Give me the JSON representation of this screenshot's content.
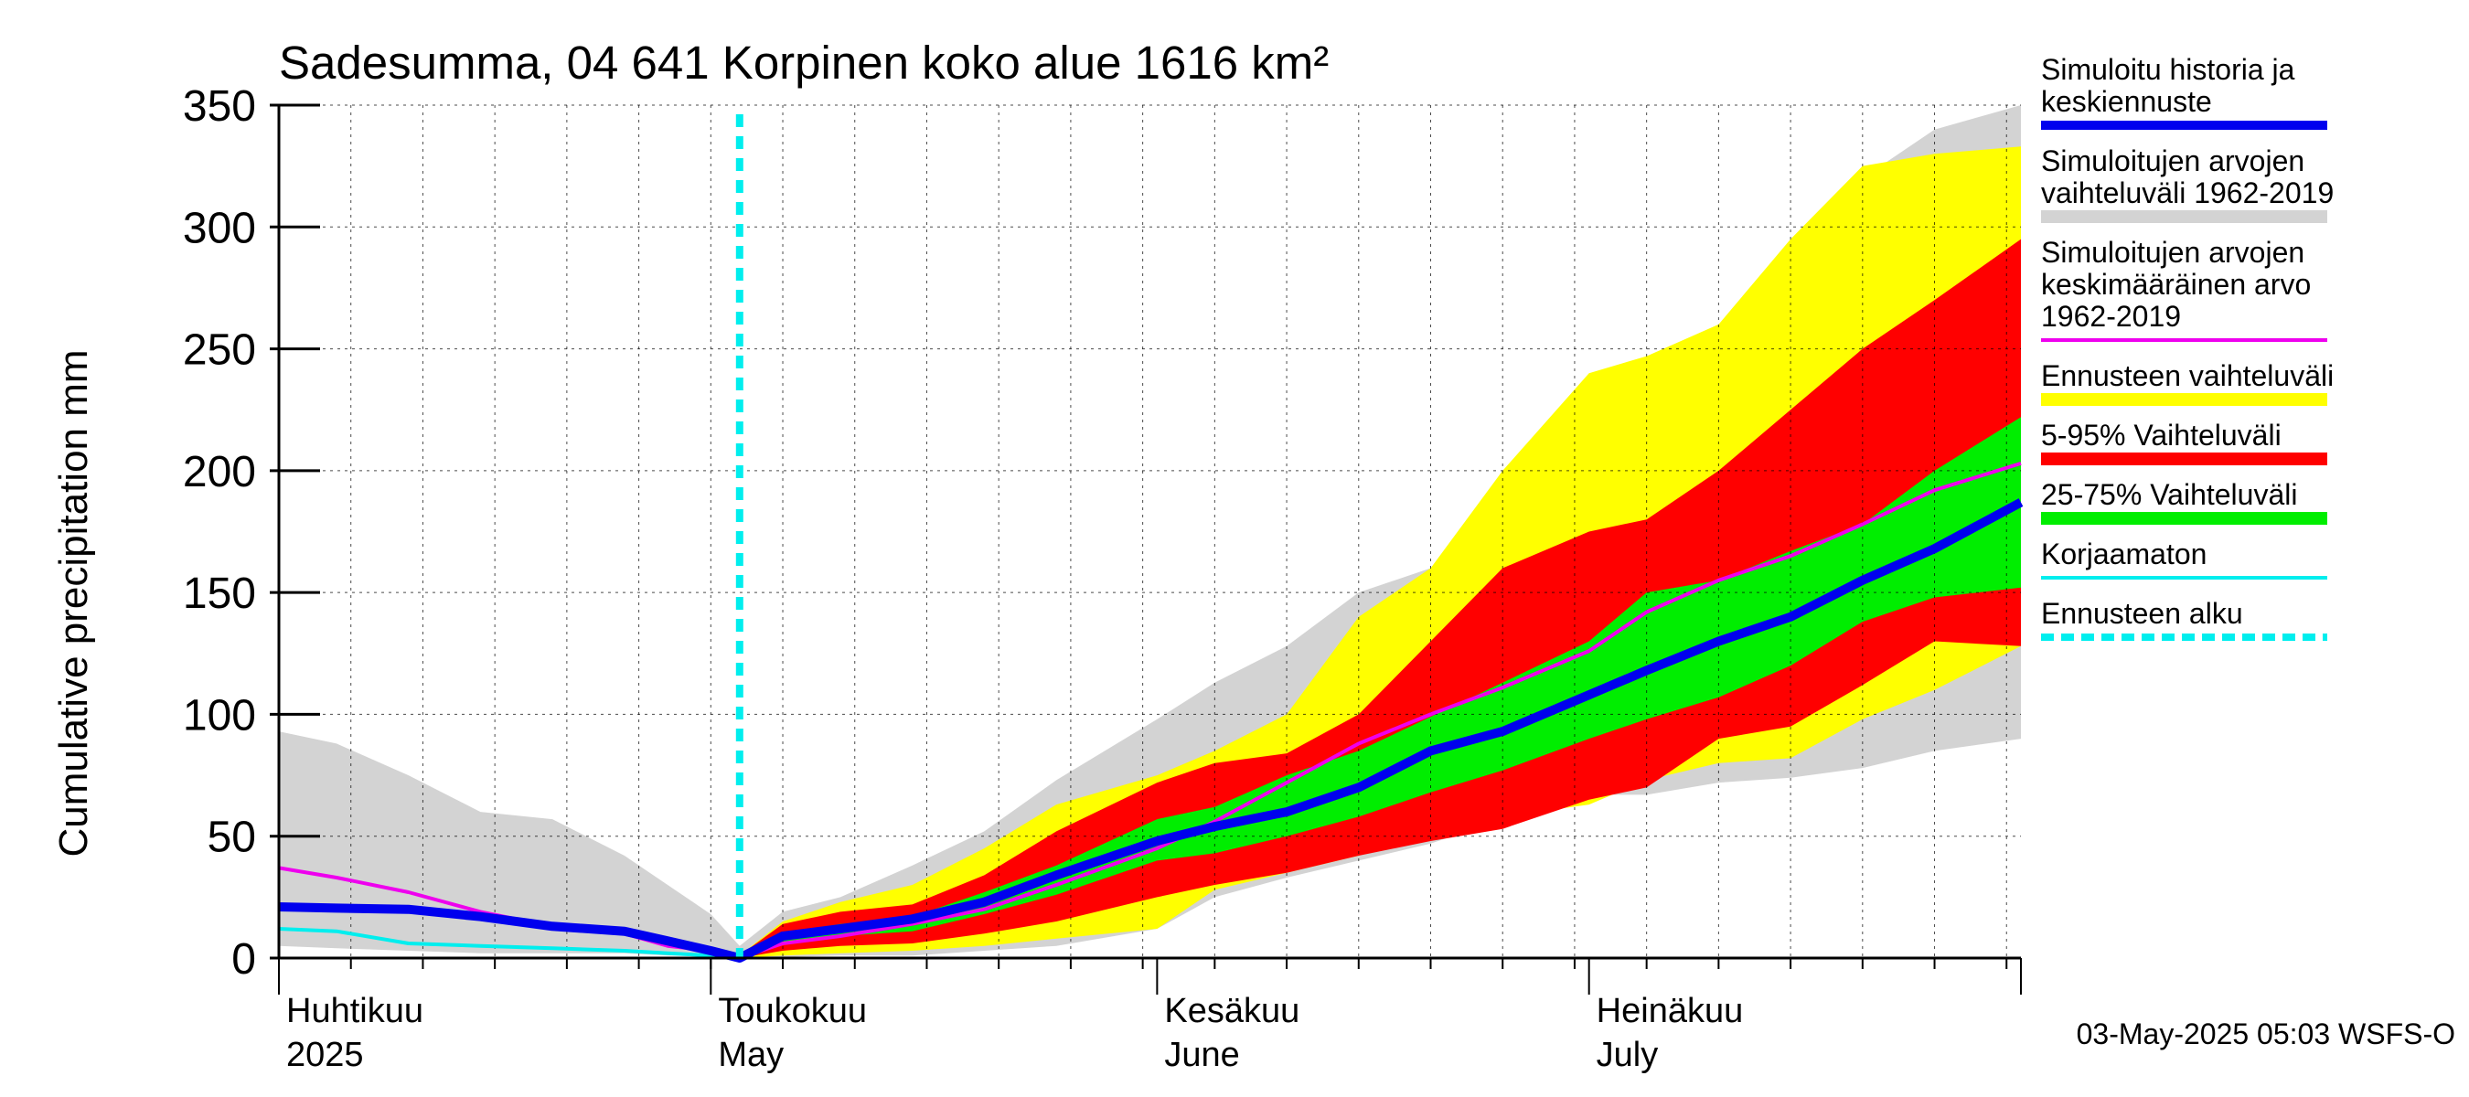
{
  "chart_data": {
    "type": "area",
    "title": "Sadesumma, 04 641 Korpinen koko alue 1616 km²",
    "ylabel": "Cumulative precipitation   mm",
    "xlabel": "",
    "ylim": [
      0,
      350
    ],
    "xlim": [
      "2025-04-01",
      "2025-07-31"
    ],
    "yticks": [
      0,
      50,
      100,
      150,
      200,
      250,
      300,
      350
    ],
    "grid": true,
    "month_labels": [
      {
        "fi": "Huhtikuu",
        "en": "2025",
        "date": "2025-04-01"
      },
      {
        "fi": "Toukokuu",
        "en": "May",
        "date": "2025-05-01"
      },
      {
        "fi": "Kesäkuu",
        "en": "June",
        "date": "2025-06-01"
      },
      {
        "fi": "Heinäkuu",
        "en": "July",
        "date": "2025-07-01"
      }
    ],
    "forecast_start": "2025-05-03",
    "footer": "03-May-2025 05:03 WSFS-O",
    "legend_position": "right",
    "legend": [
      {
        "key": "history",
        "label": [
          "Simuloitu historia ja",
          "keskiennuste"
        ],
        "color": "#0000ee",
        "style": "thick-line"
      },
      {
        "key": "range_all",
        "label": [
          "Simuloitujen arvojen",
          "vaihteluväli 1962-2019"
        ],
        "color": "#d3d3d3",
        "style": "band"
      },
      {
        "key": "mean",
        "label": [
          "Simuloitujen arvojen",
          "keskimääräinen arvo",
          "   1962-2019"
        ],
        "color": "#ee00ee",
        "style": "line"
      },
      {
        "key": "forecast_range",
        "label": [
          "Ennusteen vaihteluväli"
        ],
        "color": "#ffff00",
        "style": "band"
      },
      {
        "key": "p5_95",
        "label": [
          "5-95% Vaihteluväli"
        ],
        "color": "#ff0000",
        "style": "band"
      },
      {
        "key": "p25_75",
        "label": [
          "25-75% Vaihteluväli"
        ],
        "color": "#00ee00",
        "style": "band"
      },
      {
        "key": "uncorrected",
        "label": [
          "Korjaamaton"
        ],
        "color": "#00eeee",
        "style": "line"
      },
      {
        "key": "forecast_start",
        "label": [
          "Ennusteen alku"
        ],
        "color": "#00eeee",
        "style": "dashed"
      }
    ],
    "series": {
      "x": [
        "2025-04-01",
        "2025-04-05",
        "2025-04-10",
        "2025-04-15",
        "2025-04-20",
        "2025-04-25",
        "2025-04-28",
        "2025-05-01",
        "2025-05-03",
        "2025-05-06",
        "2025-05-10",
        "2025-05-15",
        "2025-05-20",
        "2025-05-25",
        "2025-06-01",
        "2025-06-05",
        "2025-06-10",
        "2025-06-15",
        "2025-06-20",
        "2025-06-25",
        "2025-07-01",
        "2025-07-05",
        "2025-07-10",
        "2025-07-15",
        "2025-07-20",
        "2025-07-25",
        "2025-07-31"
      ],
      "range_all_hi": [
        93,
        88,
        75,
        60,
        57,
        42,
        30,
        18,
        5,
        19,
        25,
        38,
        52,
        73,
        98,
        113,
        128,
        150,
        160,
        184,
        198,
        233,
        257,
        290,
        320,
        340,
        350
      ],
      "range_all_lo": [
        5,
        4,
        3,
        2,
        2,
        2,
        1,
        0.5,
        0.2,
        0.5,
        1,
        1,
        3,
        5,
        12,
        25,
        33,
        40,
        47,
        57,
        67,
        67,
        72,
        74,
        78,
        85,
        90
      ],
      "forecast_hi": [
        null,
        null,
        null,
        null,
        null,
        null,
        null,
        null,
        1,
        15,
        23,
        30,
        45,
        63,
        75,
        85,
        100,
        140,
        160,
        200,
        240,
        247,
        260,
        295,
        325,
        330,
        333
      ],
      "forecast_lo": [
        null,
        null,
        null,
        null,
        null,
        null,
        null,
        null,
        0,
        1,
        2,
        3,
        5,
        8,
        12,
        28,
        35,
        42,
        52,
        58,
        63,
        73,
        80,
        82,
        98,
        110,
        128
      ],
      "p95": [
        null,
        null,
        null,
        null,
        null,
        null,
        null,
        null,
        1,
        14,
        19,
        22,
        34,
        52,
        72,
        80,
        84,
        100,
        130,
        160,
        175,
        180,
        200,
        225,
        250,
        270,
        295
      ],
      "p5": [
        null,
        null,
        null,
        null,
        null,
        null,
        null,
        null,
        0,
        3,
        5,
        6,
        10,
        15,
        25,
        30,
        35,
        42,
        48,
        53,
        65,
        70,
        90,
        95,
        112,
        130,
        128
      ],
      "p75": [
        null,
        null,
        null,
        null,
        null,
        null,
        null,
        null,
        0.5,
        10,
        14,
        17,
        27,
        38,
        57,
        62,
        75,
        85,
        99,
        113,
        130,
        150,
        155,
        167,
        178,
        200,
        222
      ],
      "p25": [
        null,
        null,
        null,
        null,
        null,
        null,
        null,
        null,
        0,
        6,
        9,
        11,
        18,
        26,
        40,
        43,
        50,
        58,
        68,
        77,
        90,
        98,
        107,
        120,
        138,
        148,
        152
      ],
      "history_mean": [
        21,
        20.5,
        20,
        17,
        13,
        11,
        7,
        3,
        0,
        9,
        12,
        16,
        23,
        34,
        48,
        54,
        60,
        70,
        85,
        93,
        108,
        118,
        130,
        140,
        155,
        168,
        187
      ],
      "mean_all": [
        37,
        33,
        27,
        19,
        13,
        10,
        5,
        3,
        0,
        6,
        9,
        14,
        20,
        30,
        45,
        56,
        72,
        88,
        100,
        111,
        126,
        142,
        155,
        165,
        178,
        192,
        203
      ],
      "uncorrected": [
        12,
        11,
        6,
        5,
        4,
        3,
        2,
        1,
        0,
        null,
        null,
        null,
        null,
        null,
        null,
        null,
        null,
        null,
        null,
        null,
        null,
        null,
        null,
        null,
        null,
        null,
        null
      ]
    }
  }
}
